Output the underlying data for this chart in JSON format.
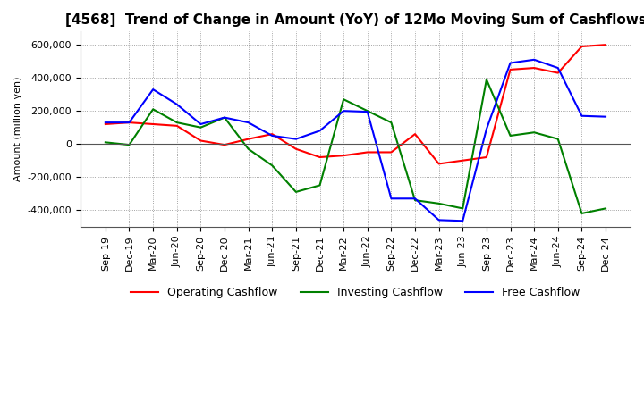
{
  "title": "[4568]  Trend of Change in Amount (YoY) of 12Mo Moving Sum of Cashflows",
  "ylabel": "Amount (million yen)",
  "ylim": [
    -500000,
    680000
  ],
  "yticks": [
    -400000,
    -200000,
    0,
    200000,
    400000,
    600000
  ],
  "x_labels": [
    "Sep-19",
    "Dec-19",
    "Mar-20",
    "Jun-20",
    "Sep-20",
    "Dec-20",
    "Mar-21",
    "Jun-21",
    "Sep-21",
    "Dec-21",
    "Mar-22",
    "Jun-22",
    "Sep-22",
    "Dec-22",
    "Mar-23",
    "Jun-23",
    "Sep-23",
    "Dec-23",
    "Mar-24",
    "Jun-24",
    "Sep-24",
    "Dec-24"
  ],
  "operating": [
    120000,
    130000,
    120000,
    110000,
    20000,
    -5000,
    30000,
    60000,
    -30000,
    -80000,
    -70000,
    -50000,
    -50000,
    60000,
    -120000,
    -100000,
    -80000,
    450000,
    460000,
    430000,
    590000,
    600000
  ],
  "investing": [
    10000,
    -5000,
    210000,
    130000,
    100000,
    160000,
    -30000,
    -130000,
    -290000,
    -250000,
    270000,
    200000,
    130000,
    -340000,
    -360000,
    -390000,
    390000,
    50000,
    70000,
    30000,
    -420000,
    -390000
  ],
  "free": [
    130000,
    130000,
    330000,
    240000,
    120000,
    160000,
    130000,
    50000,
    30000,
    80000,
    200000,
    195000,
    -330000,
    -330000,
    -460000,
    -465000,
    90000,
    490000,
    510000,
    460000,
    170000,
    165000
  ],
  "operating_color": "#ff0000",
  "investing_color": "#008000",
  "free_color": "#0000ff",
  "background_color": "#ffffff",
  "grid_color": "#888888",
  "title_fontsize": 11,
  "legend_fontsize": 9,
  "tick_fontsize": 8
}
